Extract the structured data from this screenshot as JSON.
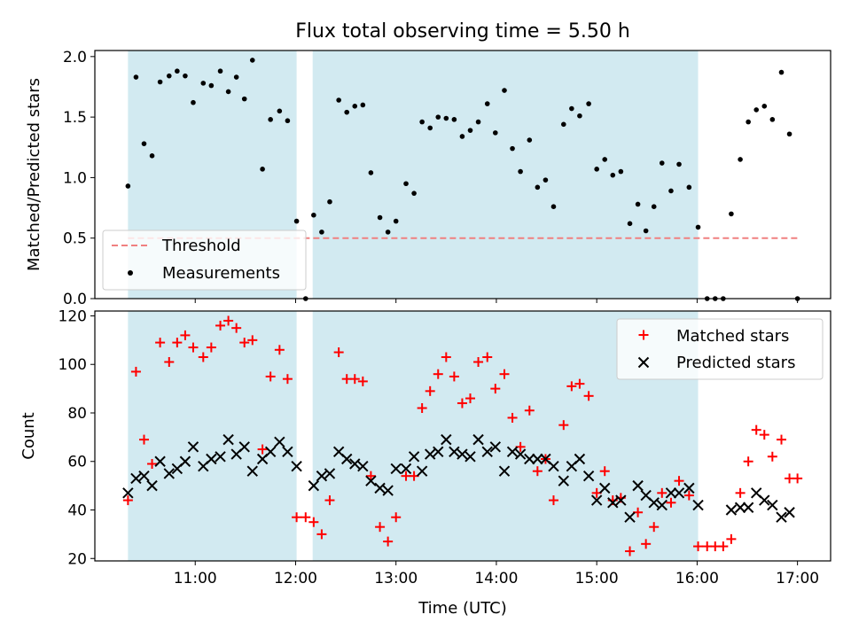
{
  "chart_data": {
    "type": "scatter",
    "title": "Flux total observing time = 5.50 h",
    "xlabel": "Time (UTC)",
    "x_ticks": [
      "11:00",
      "12:00",
      "13:00",
      "14:00",
      "15:00",
      "16:00",
      "17:00"
    ],
    "x_tick_hours": [
      11,
      12,
      13,
      14,
      15,
      16,
      17
    ],
    "xlim_hours": [
      10.0,
      17.33
    ],
    "shaded_intervals_hours": [
      [
        10.33,
        12.01
      ],
      [
        12.17,
        16.01
      ]
    ],
    "shade_color": "#add8e6",
    "top_panel": {
      "ylabel": "Matched/Predicted stars",
      "ylim": [
        0,
        2.05
      ],
      "y_ticks": [
        "0.0",
        "0.5",
        "1.0",
        "1.5",
        "2.0"
      ],
      "y_tick_values": [
        0,
        0.5,
        1.0,
        1.5,
        2.0
      ],
      "threshold": {
        "name": "Threshold",
        "value": 0.5,
        "x_range_hours": [
          10.33,
          17.0
        ],
        "color": "#f08080",
        "style": "dashed"
      },
      "measurements": {
        "name": "Measurements",
        "color": "#000000",
        "x_hours": [
          10.33,
          10.41,
          10.49,
          10.57,
          10.65,
          10.74,
          10.82,
          10.9,
          10.98,
          11.08,
          11.16,
          11.25,
          11.33,
          11.41,
          11.49,
          11.57,
          11.67,
          11.75,
          11.84,
          11.92,
          12.01,
          12.1,
          12.18,
          12.26,
          12.34,
          12.43,
          12.51,
          12.59,
          12.67,
          12.75,
          12.84,
          12.92,
          13.0,
          13.1,
          13.18,
          13.26,
          13.34,
          13.42,
          13.5,
          13.58,
          13.66,
          13.74,
          13.82,
          13.91,
          13.99,
          14.08,
          14.16,
          14.24,
          14.33,
          14.41,
          14.49,
          14.57,
          14.67,
          14.75,
          14.83,
          14.92,
          15.0,
          15.08,
          15.16,
          15.24,
          15.33,
          15.41,
          15.49,
          15.57,
          15.65,
          15.74,
          15.82,
          15.92,
          16.01,
          16.1,
          16.18,
          16.26,
          16.34,
          16.43,
          16.51,
          16.59,
          16.67,
          16.75,
          16.84,
          16.92,
          17.0
        ],
        "y": [
          0.93,
          1.83,
          1.28,
          1.18,
          1.79,
          1.84,
          1.88,
          1.84,
          1.62,
          1.78,
          1.76,
          1.88,
          1.71,
          1.83,
          1.65,
          1.97,
          1.07,
          1.48,
          1.55,
          1.47,
          0.64,
          0.0,
          0.69,
          0.55,
          0.8,
          1.64,
          1.54,
          1.59,
          1.6,
          1.04,
          0.67,
          0.55,
          0.64,
          0.95,
          0.87,
          1.46,
          1.41,
          1.5,
          1.49,
          1.48,
          1.34,
          1.39,
          1.46,
          1.61,
          1.37,
          1.72,
          1.24,
          1.05,
          1.31,
          0.92,
          0.98,
          0.76,
          1.44,
          1.57,
          1.51,
          1.61,
          1.07,
          1.15,
          1.02,
          1.05,
          0.62,
          0.78,
          0.56,
          0.76,
          1.12,
          0.89,
          1.11,
          0.92,
          0.59,
          0.0,
          0.0,
          0.0,
          0.7,
          1.15,
          1.46,
          1.56,
          1.59,
          1.48,
          1.87,
          1.36,
          0.0
        ]
      }
    },
    "bottom_panel": {
      "ylabel": "Count",
      "ylim": [
        19,
        122
      ],
      "y_ticks": [
        "20",
        "40",
        "60",
        "80",
        "100",
        "120"
      ],
      "y_tick_values": [
        20,
        40,
        60,
        80,
        100,
        120
      ],
      "series": [
        {
          "name": "Matched stars",
          "marker": "plus",
          "color": "#ff0000",
          "x_hours": [
            10.33,
            10.41,
            10.49,
            10.57,
            10.65,
            10.74,
            10.82,
            10.9,
            10.98,
            11.08,
            11.16,
            11.25,
            11.33,
            11.41,
            11.49,
            11.57,
            11.67,
            11.75,
            11.84,
            11.92,
            12.01,
            12.1,
            12.18,
            12.26,
            12.34,
            12.43,
            12.51,
            12.59,
            12.67,
            12.75,
            12.84,
            12.92,
            13.0,
            13.1,
            13.18,
            13.26,
            13.34,
            13.42,
            13.5,
            13.58,
            13.66,
            13.74,
            13.82,
            13.91,
            13.99,
            14.08,
            14.16,
            14.24,
            14.33,
            14.41,
            14.49,
            14.57,
            14.67,
            14.75,
            14.83,
            14.92,
            15.0,
            15.08,
            15.16,
            15.24,
            15.33,
            15.41,
            15.49,
            15.57,
            15.65,
            15.74,
            15.82,
            15.92,
            16.01,
            16.1,
            16.18,
            16.26,
            16.34,
            16.43,
            16.51,
            16.59,
            16.67,
            16.75,
            16.84,
            16.92,
            17.0
          ],
          "y": [
            44,
            97,
            69,
            59,
            109,
            101,
            109,
            112,
            107,
            103,
            107,
            116,
            118,
            115,
            109,
            110,
            65,
            95,
            106,
            94,
            37,
            37,
            35,
            30,
            44,
            105,
            94,
            94,
            93,
            54,
            33,
            27,
            37,
            54,
            54,
            82,
            89,
            96,
            103,
            95,
            84,
            86,
            101,
            103,
            90,
            96,
            78,
            66,
            81,
            56,
            61,
            44,
            75,
            91,
            92,
            87,
            47,
            56,
            44,
            45,
            23,
            39,
            26,
            33,
            47,
            43,
            52,
            46,
            25,
            25,
            25,
            25,
            28,
            47,
            60,
            73,
            71,
            62,
            69,
            53,
            53
          ]
        },
        {
          "name": "Predicted stars",
          "marker": "x",
          "color": "#000000",
          "x_hours": [
            10.33,
            10.41,
            10.49,
            10.57,
            10.65,
            10.74,
            10.82,
            10.9,
            10.98,
            11.08,
            11.16,
            11.25,
            11.33,
            11.41,
            11.49,
            11.57,
            11.67,
            11.75,
            11.84,
            11.92,
            12.01,
            12.18,
            12.26,
            12.34,
            12.43,
            12.51,
            12.59,
            12.67,
            12.75,
            12.84,
            12.92,
            13.0,
            13.1,
            13.18,
            13.26,
            13.34,
            13.42,
            13.5,
            13.58,
            13.66,
            13.74,
            13.82,
            13.91,
            13.99,
            14.08,
            14.16,
            14.24,
            14.33,
            14.41,
            14.49,
            14.57,
            14.67,
            14.75,
            14.83,
            14.92,
            15.0,
            15.08,
            15.16,
            15.24,
            15.33,
            15.41,
            15.49,
            15.57,
            15.65,
            15.74,
            15.82,
            15.92,
            16.01,
            16.34,
            16.43,
            16.51,
            16.59,
            16.67,
            16.75,
            16.84,
            16.92
          ],
          "y": [
            47,
            53,
            54,
            50,
            60,
            55,
            57,
            60,
            66,
            58,
            61,
            62,
            69,
            63,
            66,
            56,
            61,
            64,
            68,
            64,
            58,
            50,
            54,
            55,
            64,
            61,
            59,
            58,
            52,
            49,
            48,
            57,
            57,
            62,
            56,
            63,
            64,
            69,
            64,
            63,
            62,
            69,
            64,
            66,
            56,
            64,
            63,
            61,
            61,
            61,
            58,
            52,
            58,
            61,
            54,
            44,
            49,
            43,
            44,
            37,
            50,
            46,
            43,
            42,
            47,
            47,
            49,
            42,
            40,
            41,
            41,
            47,
            44,
            42,
            37,
            39
          ]
        }
      ]
    },
    "legend_top": {
      "placement": "lower-left",
      "entries": [
        "Threshold",
        "Measurements"
      ]
    },
    "legend_bottom": {
      "placement": "upper-right",
      "entries": [
        "Matched stars",
        "Predicted stars"
      ]
    }
  }
}
